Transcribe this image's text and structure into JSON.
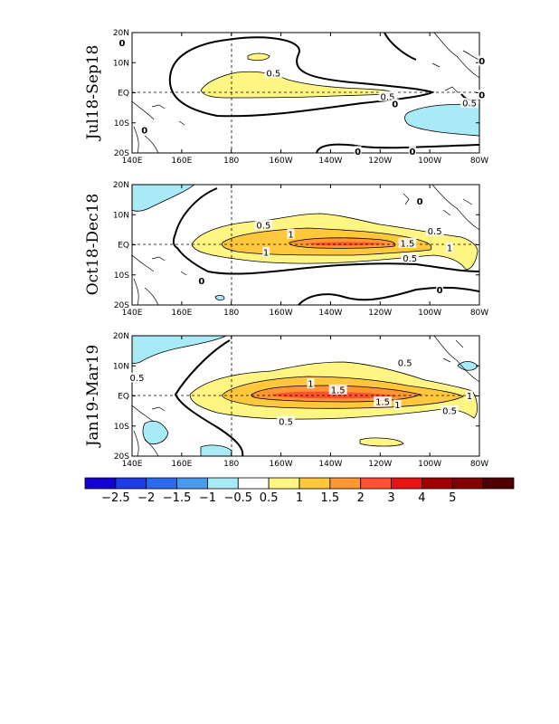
{
  "map": {
    "type": "contour-map",
    "title": "",
    "lon_ticks": [
      "140E",
      "160E",
      "180",
      "160W",
      "140W",
      "120W",
      "100W",
      "80W"
    ],
    "lat_ticks": [
      "20N",
      "10N",
      "EQ",
      "10S",
      "20S"
    ],
    "panels": [
      {
        "label": "Jul18-Sep18",
        "contour_labels": [
          {
            "text": "0",
            "lon": 136,
            "lat": 16.5,
            "zero": true
          },
          {
            "text": "0.5",
            "lon": 197,
            "lat": 6.5,
            "zero": false
          },
          {
            "text": "0.5",
            "lon": 243,
            "lat": -1.3,
            "zero": false
          },
          {
            "text": "0",
            "lon": 246,
            "lat": -3.8,
            "zero": true
          },
          {
            "text": "0.5",
            "lon": 276,
            "lat": -3.5,
            "zero": false
          },
          {
            "text": "0",
            "lon": 281,
            "lat": -0.8,
            "zero": true
          },
          {
            "text": "0",
            "lon": 145,
            "lat": -12.5,
            "zero": true
          },
          {
            "text": "0",
            "lon": 231,
            "lat": -19.5,
            "zero": true
          },
          {
            "text": "0",
            "lon": 253,
            "lat": -19.5,
            "zero": true
          },
          {
            "text": "0",
            "lon": 281,
            "lat": 10.5,
            "zero": true
          }
        ]
      },
      {
        "label": "Oct18-Dec18",
        "contour_labels": [
          {
            "text": "0.5",
            "lon": 193,
            "lat": 6.5,
            "zero": false
          },
          {
            "text": "1",
            "lon": 204,
            "lat": 3.5,
            "zero": false
          },
          {
            "text": "1",
            "lon": 194,
            "lat": -2.5,
            "zero": false
          },
          {
            "text": "1.5",
            "lon": 251,
            "lat": 0.5,
            "zero": false
          },
          {
            "text": "0.5",
            "lon": 262,
            "lat": 4.5,
            "zero": false
          },
          {
            "text": "0.5",
            "lon": 252,
            "lat": -4.5,
            "zero": false
          },
          {
            "text": "1",
            "lon": 268,
            "lat": -1,
            "zero": false
          },
          {
            "text": "0",
            "lon": 264,
            "lat": -15,
            "zero": true
          },
          {
            "text": "0",
            "lon": 168,
            "lat": -12,
            "zero": true
          },
          {
            "text": "0",
            "lon": 256,
            "lat": 14.5,
            "zero": true
          }
        ]
      },
      {
        "label": "Jan19-Mar19",
        "contour_labels": [
          {
            "text": "0.5",
            "lon": 142,
            "lat": 6,
            "zero": false
          },
          {
            "text": "0.5",
            "lon": 250,
            "lat": 11,
            "zero": false
          },
          {
            "text": "1",
            "lon": 212,
            "lat": 4,
            "zero": false
          },
          {
            "text": "1.5",
            "lon": 223,
            "lat": 2,
            "zero": false
          },
          {
            "text": "1.5",
            "lon": 241,
            "lat": -2,
            "zero": false
          },
          {
            "text": "1",
            "lon": 247,
            "lat": -3,
            "zero": false
          },
          {
            "text": "0.5",
            "lon": 202,
            "lat": -8.5,
            "zero": false
          },
          {
            "text": "0.5",
            "lon": 268,
            "lat": -5,
            "zero": false
          },
          {
            "text": "1",
            "lon": 276,
            "lat": 0,
            "zero": false
          }
        ]
      }
    ]
  },
  "colorbar": {
    "labels": [
      "-2.5",
      "-2",
      "-1.5",
      "-1",
      "-0.5",
      "0.5",
      "1",
      "1.5",
      "2",
      "3",
      "4",
      "5"
    ],
    "colors": [
      "#1400d2",
      "#1e3ce6",
      "#2a6aee",
      "#4a9bf0",
      "#a8ebf7",
      "#ffffff",
      "#fff582",
      "#ffc83c",
      "#ff9632",
      "#ff5032",
      "#e81414",
      "#a00000",
      "#820000",
      "#500000"
    ]
  }
}
